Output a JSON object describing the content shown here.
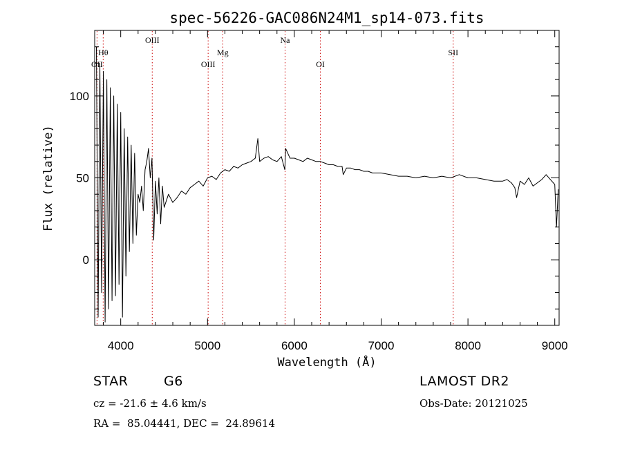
{
  "chart_data": {
    "type": "line",
    "title": "spec-56226-GAC086N24M1_sp14-073.fits",
    "xlabel": "Wavelength (Å)",
    "ylabel": "Flux (relative)",
    "xlim": [
      3700,
      9050
    ],
    "ylim": [
      -40,
      140
    ],
    "xticks": [
      4000,
      5000,
      6000,
      7000,
      8000,
      9000
    ],
    "yticks": [
      0,
      50,
      100
    ],
    "xtick_labels": [
      "4000",
      "5000",
      "6000",
      "7000",
      "8000",
      "9000"
    ],
    "ytick_labels": [
      "0",
      "50",
      "100"
    ],
    "grid": false,
    "line_color": "#000000",
    "marker_color": "#cc0000",
    "spectral_lines": [
      {
        "label": "OII",
        "wavelength": 3727,
        "row": 3
      },
      {
        "label": "Hθ",
        "wavelength": 3798,
        "row": 2
      },
      {
        "label": "OIII",
        "wavelength": 4363,
        "row": 1
      },
      {
        "label": "OIII",
        "wavelength": 5007,
        "row": 3
      },
      {
        "label": "Mg",
        "wavelength": 5175,
        "row": 2
      },
      {
        "label": "Na",
        "wavelength": 5893,
        "row": 1
      },
      {
        "label": "OI",
        "wavelength": 6300,
        "row": 3
      },
      {
        "label": "SII",
        "wavelength": 7830,
        "row": 2
      }
    ],
    "series": [
      {
        "x": [
          3720,
          3740,
          3760,
          3780,
          3800,
          3820,
          3840,
          3860,
          3880,
          3900,
          3920,
          3940,
          3960,
          3980,
          4000,
          4020,
          4040,
          4060,
          4080,
          4100,
          4120,
          4140,
          4160,
          4180,
          4200,
          4220,
          4240,
          4260,
          4280,
          4300,
          4320,
          4340,
          4360,
          4380,
          4400,
          4420,
          4440,
          4460,
          4480,
          4500,
          4550,
          4600,
          4650,
          4700,
          4750,
          4800,
          4850,
          4900,
          4950,
          5000,
          5050,
          5100,
          5150,
          5200,
          5250,
          5300,
          5350,
          5400,
          5450,
          5500,
          5550,
          5580,
          5600,
          5650,
          5700,
          5750,
          5800,
          5850,
          5890,
          5900,
          5950,
          6000,
          6050,
          6100,
          6150,
          6200,
          6250,
          6300,
          6350,
          6400,
          6450,
          6500,
          6550,
          6563,
          6600,
          6650,
          6700,
          6750,
          6800,
          6850,
          6900,
          6950,
          7000,
          7100,
          7200,
          7300,
          7400,
          7500,
          7600,
          7700,
          7800,
          7900,
          8000,
          8100,
          8200,
          8300,
          8400,
          8450,
          8500,
          8540,
          8560,
          8600,
          8650,
          8700,
          8750,
          8800,
          8850,
          8900,
          8950,
          9000,
          9020,
          9040
        ],
        "y": [
          130,
          -35,
          120,
          -20,
          115,
          -38,
          110,
          -30,
          105,
          -25,
          100,
          -22,
          95,
          -15,
          90,
          -35,
          80,
          -10,
          75,
          5,
          70,
          10,
          65,
          15,
          40,
          35,
          45,
          30,
          55,
          60,
          68,
          50,
          62,
          12,
          48,
          28,
          50,
          22,
          45,
          32,
          40,
          35,
          38,
          42,
          40,
          44,
          46,
          48,
          45,
          50,
          51,
          49,
          53,
          55,
          54,
          57,
          56,
          58,
          59,
          60,
          62,
          74,
          60,
          62,
          63,
          61,
          60,
          63,
          55,
          68,
          62,
          62,
          61,
          60,
          62,
          61,
          60,
          60,
          59,
          58,
          58,
          57,
          57,
          52,
          56,
          56,
          55,
          55,
          54,
          54,
          53,
          53,
          53,
          52,
          51,
          51,
          50,
          51,
          50,
          51,
          50,
          52,
          50,
          50,
          49,
          48,
          48,
          49,
          47,
          44,
          38,
          48,
          46,
          50,
          45,
          47,
          49,
          52,
          49,
          46,
          20,
          43
        ]
      }
    ],
    "footer": {
      "object_type": "STAR",
      "subclass": "G6",
      "survey": "LAMOST DR2",
      "cz": "cz = -21.6 ± 4.6 km/s",
      "obs_date": "Obs-Date: 20121025",
      "coords": "RA =  85.04441, DEC =  24.89614"
    }
  }
}
